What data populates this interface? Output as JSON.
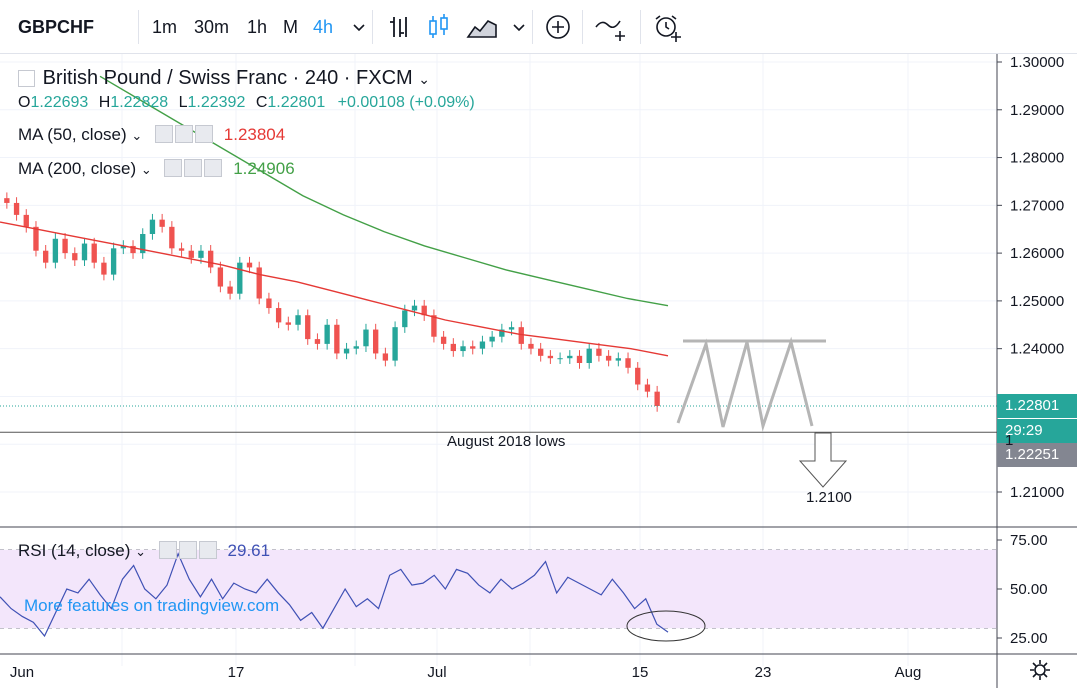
{
  "toolbar": {
    "symbol": "GBPCHF",
    "intervals": [
      "1m",
      "30m",
      "1h",
      "M",
      "4h"
    ],
    "active_interval": "4h"
  },
  "legend": {
    "title": "British Pound / Swiss Franc · 240 · FXCM",
    "ohlc": {
      "o_label": "O",
      "o": "1.22693",
      "h_label": "H",
      "h": "1.22828",
      "l_label": "L",
      "l": "1.22392",
      "c_label": "C",
      "c": "1.22801",
      "change": "+0.00108 (+0.09%)"
    },
    "ma50": {
      "label": "MA (50, close)",
      "value": "1.23804",
      "color": "#e53935"
    },
    "ma200": {
      "label": "MA (200, close)",
      "value": "1.24906",
      "color": "#43a047"
    },
    "rsi": {
      "label": "RSI (14, close)",
      "value": "29.61",
      "color": "#3f51b5"
    }
  },
  "price_labels": {
    "last": "1.22801",
    "countdown": "29:29",
    "support": "1.22251",
    "partial": "1"
  },
  "annotations": {
    "support_text": "August 2018 lows",
    "target_text": "1.2100",
    "watermark": "More features on tradingview.com"
  },
  "colors": {
    "up": "#26a69a",
    "down": "#ef5350",
    "ma50": "#e53935",
    "ma200": "#43a047",
    "rsi": "#3f51b5",
    "rsi_band": "#f3e6fb"
  },
  "chart_data": [
    {
      "type": "line",
      "title": "British Pound / Swiss Franc · 240 · FXCM",
      "x_ticks": [
        "Jun",
        "17",
        "Jul",
        "15",
        "23",
        "Aug"
      ],
      "y_ticks": [
        "1.30000",
        "1.29000",
        "1.28000",
        "1.27000",
        "1.26000",
        "1.25000",
        "1.24000",
        "1.21000"
      ],
      "ylim": [
        1.2005,
        1.3055
      ],
      "close_series": [
        1.2705,
        1.268,
        1.2655,
        1.2605,
        1.258,
        1.263,
        1.26,
        1.2585,
        1.262,
        1.258,
        1.2555,
        1.261,
        1.2615,
        1.26,
        1.264,
        1.267,
        1.2655,
        1.261,
        1.2605,
        1.259,
        1.2605,
        1.257,
        1.253,
        1.2515,
        1.258,
        1.257,
        1.2505,
        1.2485,
        1.2455,
        1.245,
        1.247,
        1.242,
        1.241,
        1.245,
        1.239,
        1.24,
        1.2405,
        1.244,
        1.239,
        1.2375,
        1.2445,
        1.248,
        1.249,
        1.247,
        1.2425,
        1.241,
        1.2395,
        1.2405,
        1.24,
        1.2415,
        1.2425,
        1.244,
        1.2445,
        1.241,
        1.24,
        1.2385,
        1.238,
        1.238,
        1.2385,
        1.237,
        1.24,
        1.2385,
        1.2375,
        1.238,
        1.236,
        1.2325,
        1.231,
        1.228
      ],
      "series": [
        {
          "name": "MA (50, close)",
          "values": [
            1.2665,
            1.265,
            1.2635,
            1.262,
            1.2605,
            1.259,
            1.2575,
            1.2555,
            1.254,
            1.252,
            1.25,
            1.248,
            1.246,
            1.2445,
            1.243,
            1.242,
            1.241,
            1.24,
            1.2385
          ]
        },
        {
          "name": "MA (200, close)",
          "values": [
            1.297,
            1.292,
            1.287,
            1.282,
            1.277,
            1.272,
            1.268,
            1.2645,
            1.2615,
            1.259,
            1.2565,
            1.2545,
            1.2525,
            1.2505,
            1.249
          ]
        }
      ],
      "support_level": 1.2225,
      "target_level": 1.21,
      "pattern": "triple top (M/W shape) projected forward"
    },
    {
      "type": "line",
      "title": "RSI (14, close)",
      "y_ticks": [
        "75.00",
        "50.00",
        "25.00"
      ],
      "ylim": [
        18,
        80
      ],
      "band": [
        30,
        70
      ],
      "series": [
        {
          "name": "RSI (14, close)",
          "values": [
            46,
            40,
            36,
            33,
            26,
            38,
            50,
            48,
            55,
            47,
            40,
            55,
            62,
            50,
            45,
            52,
            68,
            55,
            46,
            55,
            45,
            53,
            50,
            48,
            55,
            48,
            42,
            34,
            38,
            30,
            40,
            50,
            41,
            45,
            40,
            57,
            60,
            52,
            53,
            57,
            50,
            60,
            58,
            52,
            48,
            55,
            50,
            53,
            57,
            64,
            48,
            56,
            53,
            50,
            47,
            55,
            48,
            40,
            45,
            32,
            28
          ]
        }
      ]
    }
  ]
}
